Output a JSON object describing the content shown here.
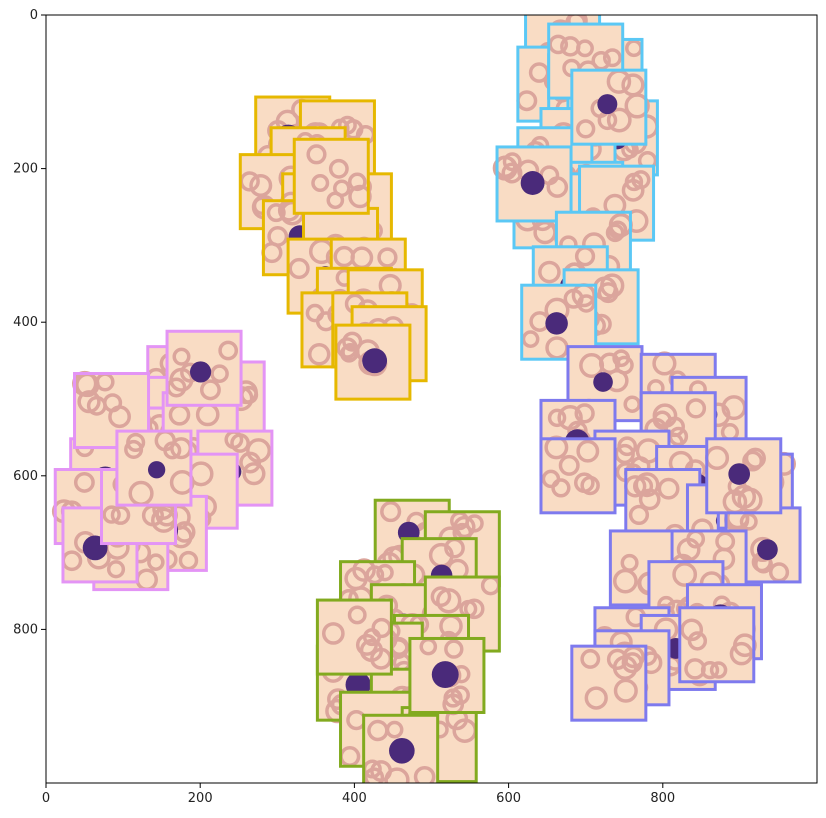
{
  "chart_data": {
    "type": "scatter",
    "title": "",
    "xlabel": "",
    "ylabel": "",
    "xlim": [
      0,
      1000
    ],
    "ylim": [
      1000,
      0
    ],
    "y_inverted": true,
    "grid": false,
    "x_ticks": [
      0,
      200,
      400,
      600,
      800
    ],
    "y_ticks": [
      0,
      200,
      400,
      600,
      800
    ],
    "x_tick_labels": [
      "0",
      "200",
      "400",
      "600",
      "800"
    ],
    "y_tick_labels": [
      "0",
      "200",
      "400",
      "600",
      "800"
    ],
    "marker": "cell-image-thumbnail",
    "thumbnail_size": 96,
    "cell_colors": {
      "background": "#f9dcc4",
      "rbc": "#dba59c",
      "nucleus": "#4a2a7a"
    },
    "clusters": [
      {
        "color": "#e6b800",
        "points": [
          [
            320,
            155
          ],
          [
            378,
            160
          ],
          [
            340,
            195
          ],
          [
            300,
            230
          ],
          [
            355,
            255
          ],
          [
            400,
            255
          ],
          [
            330,
            290
          ],
          [
            382,
            300
          ],
          [
            362,
            340
          ],
          [
            418,
            340
          ],
          [
            400,
            378
          ],
          [
            380,
            410
          ],
          [
            440,
            380
          ],
          [
            420,
            410
          ],
          [
            445,
            428
          ],
          [
            370,
            210
          ],
          [
            424,
            452
          ]
        ]
      },
      {
        "color": "#5bc8f5",
        "points": [
          [
            670,
            40
          ],
          [
            660,
            90
          ],
          [
            700,
            100
          ],
          [
            725,
            80
          ],
          [
            745,
            160
          ],
          [
            690,
            170
          ],
          [
            660,
            195
          ],
          [
            700,
            240
          ],
          [
            655,
            255
          ],
          [
            740,
            245
          ],
          [
            633,
            220
          ],
          [
            710,
            305
          ],
          [
            680,
            350
          ],
          [
            720,
            380
          ],
          [
            665,
            400
          ],
          [
            700,
            60
          ],
          [
            730,
            120
          ]
        ]
      },
      {
        "color": "#e394f5",
        "points": [
          [
            180,
            480
          ],
          [
            235,
            500
          ],
          [
            130,
            520
          ],
          [
            100,
            560
          ],
          [
            80,
            600
          ],
          [
            60,
            640
          ],
          [
            150,
            560
          ],
          [
            200,
            540
          ],
          [
            245,
            590
          ],
          [
            200,
            620
          ],
          [
            160,
            675
          ],
          [
            110,
            700
          ],
          [
            70,
            690
          ],
          [
            120,
            640
          ],
          [
            205,
            460
          ],
          [
            85,
            515
          ],
          [
            140,
            590
          ]
        ]
      },
      {
        "color": "#7e7aee",
        "points": [
          [
            725,
            480
          ],
          [
            820,
            490
          ],
          [
            860,
            520
          ],
          [
            820,
            540
          ],
          [
            690,
            550
          ],
          [
            760,
            590
          ],
          [
            840,
            610
          ],
          [
            800,
            640
          ],
          [
            880,
            660
          ],
          [
            920,
            620
          ],
          [
            930,
            690
          ],
          [
            780,
            720
          ],
          [
            860,
            720
          ],
          [
            830,
            760
          ],
          [
            880,
            790
          ],
          [
            760,
            820
          ],
          [
            820,
            830
          ],
          [
            870,
            820
          ],
          [
            760,
            850
          ],
          [
            730,
            870
          ],
          [
            905,
            600
          ],
          [
            690,
            600
          ]
        ]
      },
      {
        "color": "#82aa1f",
        "points": [
          [
            475,
            680
          ],
          [
            540,
            695
          ],
          [
            510,
            730
          ],
          [
            430,
            760
          ],
          [
            470,
            790
          ],
          [
            540,
            780
          ],
          [
            500,
            830
          ],
          [
            440,
            840
          ],
          [
            400,
            870
          ],
          [
            470,
            900
          ],
          [
            430,
            930
          ],
          [
            510,
            950
          ],
          [
            460,
            960
          ],
          [
            400,
            810
          ],
          [
            520,
            860
          ]
        ]
      }
    ]
  }
}
